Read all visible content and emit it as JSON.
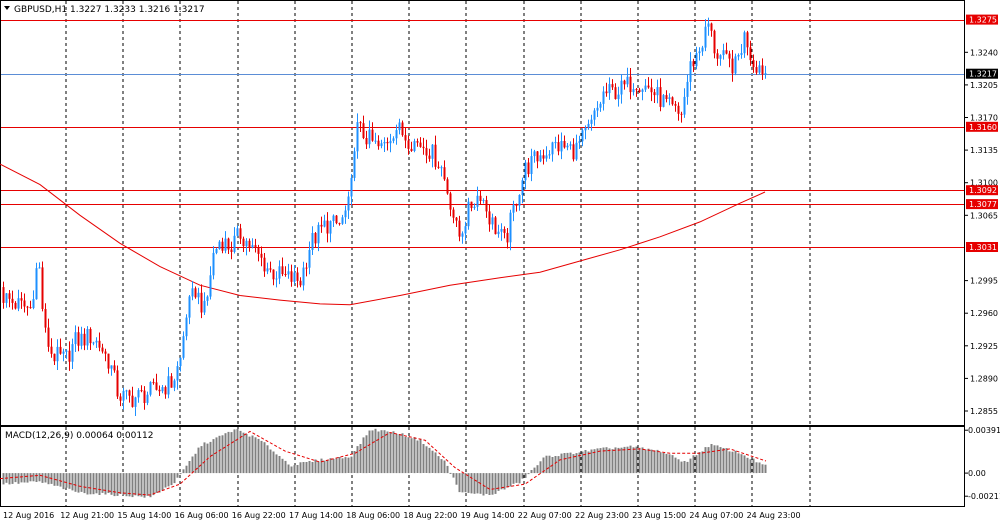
{
  "header": {
    "symbol_label": "GBPUSD,H1  1.3227 1.3233 1.3216 1.3217"
  },
  "macd_header": {
    "label": "MACD(12,26,9) 0.00064 0.00112"
  },
  "colors": {
    "up_candle": "#1e90ff",
    "down_candle": "#e60000",
    "price_line": "#5b8dd6",
    "level_line": "#e60000",
    "ma_line": "#e60000",
    "histogram": "#808080",
    "signal_line": "#e60000",
    "grid": "#000000",
    "axis_label_bg": "#e60000",
    "axis_label_fg": "#ffffff"
  },
  "chart_data": [
    {
      "type": "candlestick",
      "symbol": "GBPUSD",
      "timeframe": "H1",
      "ohlc_current": {
        "open": 1.3227,
        "high": 1.3233,
        "low": 1.3216,
        "close": 1.3217
      },
      "ylim": [
        1.284,
        1.3295
      ],
      "y_ticks": [
        1.324,
        1.3205,
        1.317,
        1.3135,
        1.31,
        1.3065,
        1.2995,
        1.296,
        1.2925,
        1.289,
        1.2855
      ],
      "x_ticks": [
        "12 Aug 2016",
        "12 Aug 21:00",
        "15 Aug 14:00",
        "16 Aug 06:00",
        "16 Aug 22:00",
        "17 Aug 14:00",
        "18 Aug 06:00",
        "18 Aug 22:00",
        "19 Aug 14:00",
        "22 Aug 07:00",
        "22 Aug 23:00",
        "23 Aug 15:00",
        "24 Aug 07:00",
        "24 Aug 23:00"
      ],
      "current_price": 1.3217,
      "horizontal_levels": [
        1.3275,
        1.316,
        1.3092,
        1.3077,
        1.3031
      ],
      "moving_average": [
        [
          0,
          1.312
        ],
        [
          40,
          1.3098
        ],
        [
          80,
          1.3065
        ],
        [
          120,
          1.3035
        ],
        [
          160,
          1.301
        ],
        [
          200,
          1.299
        ],
        [
          240,
          1.2979
        ],
        [
          280,
          1.2974
        ],
        [
          320,
          1.297
        ],
        [
          350,
          1.2969
        ],
        [
          400,
          1.2979
        ],
        [
          450,
          1.299
        ],
        [
          500,
          1.2998
        ],
        [
          540,
          1.3004
        ],
        [
          580,
          1.3016
        ],
        [
          620,
          1.3028
        ],
        [
          660,
          1.3042
        ],
        [
          700,
          1.3058
        ],
        [
          740,
          1.3078
        ],
        [
          765,
          1.309
        ]
      ],
      "close_anchors": [
        [
          0,
          1.298
        ],
        [
          15,
          1.297
        ],
        [
          30,
          1.2965
        ],
        [
          38,
          1.302
        ],
        [
          44,
          1.294
        ],
        [
          52,
          1.2915
        ],
        [
          65,
          1.291
        ],
        [
          75,
          1.293
        ],
        [
          90,
          1.2935
        ],
        [
          100,
          1.2925
        ],
        [
          110,
          1.2905
        ],
        [
          118,
          1.2872
        ],
        [
          130,
          1.2868
        ],
        [
          145,
          1.2873
        ],
        [
          160,
          1.288
        ],
        [
          172,
          1.2885
        ],
        [
          180,
          1.291
        ],
        [
          186,
          1.296
        ],
        [
          195,
          1.2985
        ],
        [
          205,
          1.296
        ],
        [
          212,
          1.302
        ],
        [
          220,
          1.304
        ],
        [
          230,
          1.303
        ],
        [
          240,
          1.3045
        ],
        [
          255,
          1.3025
        ],
        [
          270,
          1.3005
        ],
        [
          285,
          1.2998
        ],
        [
          300,
          1.2995
        ],
        [
          310,
          1.3035
        ],
        [
          325,
          1.3055
        ],
        [
          340,
          1.3055
        ],
        [
          350,
          1.308
        ],
        [
          355,
          1.316
        ],
        [
          365,
          1.315
        ],
        [
          380,
          1.3135
        ],
        [
          395,
          1.316
        ],
        [
          410,
          1.3145
        ],
        [
          425,
          1.314
        ],
        [
          440,
          1.312
        ],
        [
          450,
          1.308
        ],
        [
          458,
          1.304
        ],
        [
          470,
          1.3075
        ],
        [
          480,
          1.309
        ],
        [
          490,
          1.306
        ],
        [
          505,
          1.3035
        ],
        [
          515,
          1.308
        ],
        [
          525,
          1.3115
        ],
        [
          540,
          1.313
        ],
        [
          555,
          1.314
        ],
        [
          575,
          1.3135
        ],
        [
          590,
          1.316
        ],
        [
          603,
          1.3195
        ],
        [
          620,
          1.32
        ],
        [
          635,
          1.321
        ],
        [
          650,
          1.32
        ],
        [
          665,
          1.3185
        ],
        [
          680,
          1.317
        ],
        [
          690,
          1.3225
        ],
        [
          700,
          1.3245
        ],
        [
          708,
          1.327
        ],
        [
          715,
          1.324
        ],
        [
          725,
          1.323
        ],
        [
          735,
          1.3225
        ],
        [
          745,
          1.326
        ],
        [
          752,
          1.323
        ],
        [
          760,
          1.3225
        ],
        [
          766,
          1.3217
        ]
      ]
    },
    {
      "type": "macd",
      "params": "12,26,9",
      "main": 0.00064,
      "signal": 0.00112,
      "ylim": [
        -0.003,
        0.0042
      ],
      "y_ticks": [
        0.00391,
        0.0,
        -0.00211
      ],
      "y_tick_labels": [
        "0.00391",
        "0.00",
        "-0.00211"
      ],
      "hist_anchors": [
        [
          0,
          -0.001
        ],
        [
          40,
          -0.0008
        ],
        [
          80,
          -0.0018
        ],
        [
          120,
          -0.002
        ],
        [
          150,
          -0.0022
        ],
        [
          175,
          -0.0008
        ],
        [
          200,
          0.0025
        ],
        [
          235,
          0.004
        ],
        [
          260,
          0.003
        ],
        [
          290,
          0.0007
        ],
        [
          320,
          0.0012
        ],
        [
          350,
          0.0015
        ],
        [
          370,
          0.004
        ],
        [
          395,
          0.0037
        ],
        [
          420,
          0.003
        ],
        [
          445,
          0.001
        ],
        [
          460,
          -0.0018
        ],
        [
          490,
          -0.002
        ],
        [
          520,
          -0.0008
        ],
        [
          545,
          0.0015
        ],
        [
          570,
          0.0018
        ],
        [
          600,
          0.0022
        ],
        [
          630,
          0.0024
        ],
        [
          660,
          0.002
        ],
        [
          685,
          0.001
        ],
        [
          710,
          0.0026
        ],
        [
          740,
          0.0018
        ],
        [
          766,
          0.0006
        ]
      ],
      "signal_anchors": [
        [
          0,
          -0.0005
        ],
        [
          40,
          -0.0002
        ],
        [
          80,
          -0.0012
        ],
        [
          120,
          -0.0018
        ],
        [
          150,
          -0.002
        ],
        [
          180,
          -0.001
        ],
        [
          210,
          0.0015
        ],
        [
          250,
          0.0038
        ],
        [
          285,
          0.002
        ],
        [
          320,
          0.001
        ],
        [
          355,
          0.0018
        ],
        [
          390,
          0.0037
        ],
        [
          425,
          0.003
        ],
        [
          455,
          0.0005
        ],
        [
          490,
          -0.0015
        ],
        [
          525,
          -0.001
        ],
        [
          560,
          0.0012
        ],
        [
          600,
          0.002
        ],
        [
          640,
          0.0022
        ],
        [
          670,
          0.0018
        ],
        [
          700,
          0.0018
        ],
        [
          730,
          0.0022
        ],
        [
          766,
          0.0011
        ]
      ]
    }
  ]
}
